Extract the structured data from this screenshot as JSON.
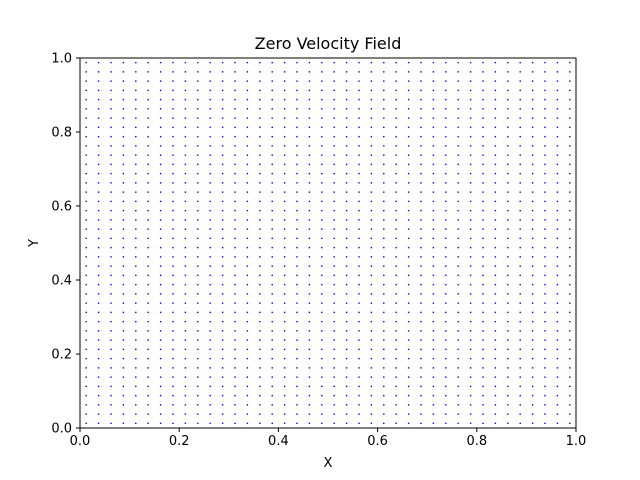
{
  "chart_data": {
    "type": "scatter",
    "title": "Zero Velocity Field",
    "xlabel": "X",
    "ylabel": "Y",
    "xlim": [
      0,
      1
    ],
    "ylim": [
      0,
      1
    ],
    "xticks": [
      0.0,
      0.2,
      0.4,
      0.6,
      0.8,
      1.0
    ],
    "yticks": [
      0.0,
      0.2,
      0.4,
      0.6,
      0.8,
      1.0
    ],
    "xtick_labels": [
      "0.0",
      "0.2",
      "0.4",
      "0.6",
      "0.8",
      "1.0"
    ],
    "ytick_labels": [
      "0.0",
      "0.2",
      "0.4",
      "0.6",
      "0.8",
      "1.0"
    ],
    "grid": false,
    "series": [
      {
        "marker_color": "#0000ff",
        "description_of_values": "uniform grid of zero-length velocity arrows",
        "x_start": 0.0125,
        "x_step": 0.025,
        "x_count": 40,
        "y_start": 0.0125,
        "y_step": 0.025,
        "y_count": 40,
        "u": 0,
        "v": 0
      }
    ]
  }
}
